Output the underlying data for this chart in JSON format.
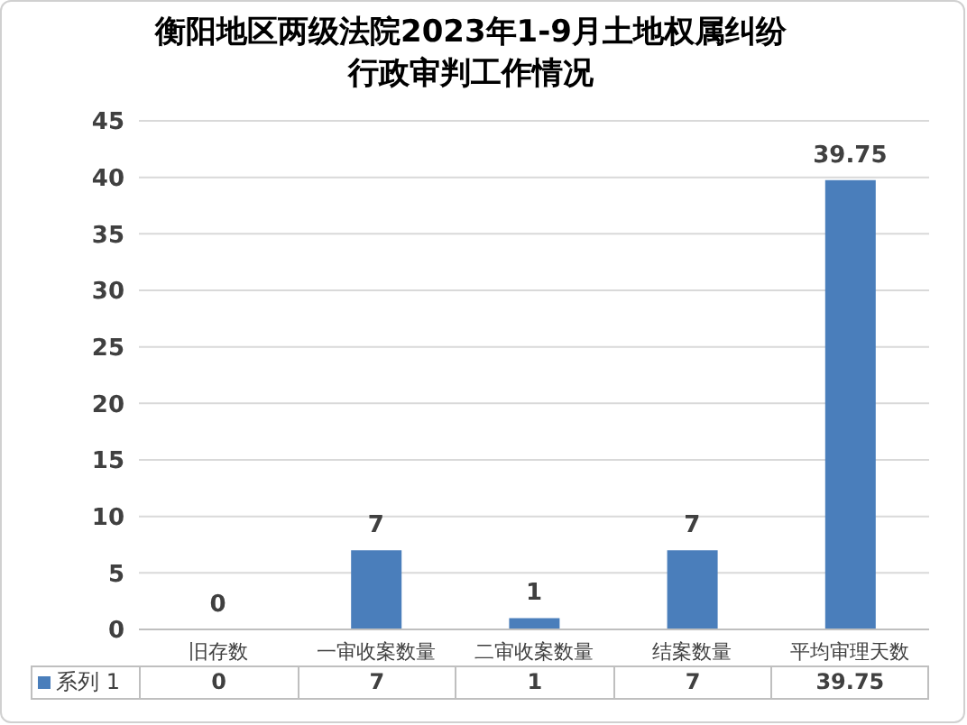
{
  "chart_data": {
    "type": "bar",
    "title": "衡阳地区两级法院2023年1-9月土地权属纠纷行政审判工作情况",
    "categories": [
      "旧存数",
      "一审收案数量",
      "二审收案数量",
      "结案数量",
      "平均审理天数"
    ],
    "series": [
      {
        "name": "系列 1",
        "color": "#4a7ebb",
        "values": [
          0,
          7,
          1,
          7,
          39.75
        ],
        "value_labels": [
          "0",
          "7",
          "1",
          "7",
          "39.75"
        ]
      }
    ],
    "ylim": [
      0,
      45
    ],
    "yticks": [
      0,
      5,
      10,
      15,
      20,
      25,
      30,
      35,
      40,
      45
    ],
    "grid": "y",
    "legend": "bottom",
    "data_labels": true
  }
}
